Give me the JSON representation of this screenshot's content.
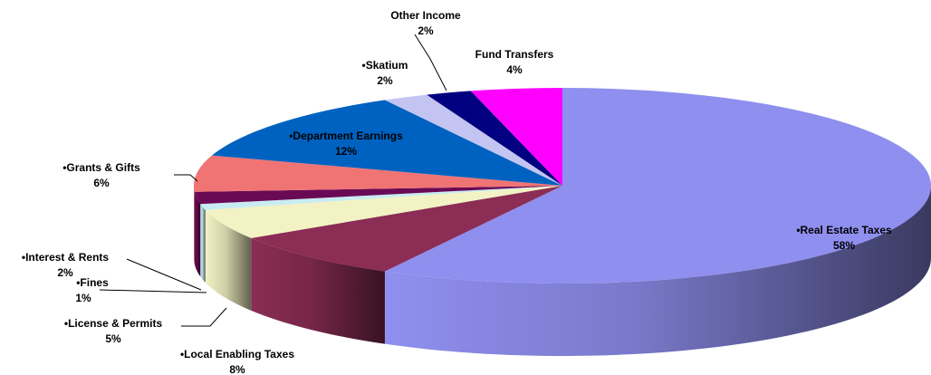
{
  "chart_data": {
    "type": "pie3d",
    "categories": [
      "•Real Estate Taxes",
      "•Local Enabling Taxes",
      "•License & Permits",
      "•Fines",
      "•Interest & Rents",
      "•Grants & Gifts",
      "•Department Earnings",
      "•Skatium",
      "Other Income",
      "Fund Transfers"
    ],
    "values": [
      58,
      8,
      5,
      1,
      2,
      6,
      12,
      2,
      2,
      4
    ],
    "value_labels": [
      "58%",
      "8%",
      "5%",
      "1%",
      "2%",
      "6%",
      "12%",
      "2%",
      "2%",
      "4%"
    ],
    "colors": [
      "#8f8fef",
      "#8b2d55",
      "#f2f2c4",
      "#c8ecf2",
      "#6a0a55",
      "#f07474",
      "#0062c0",
      "#c4c4f2",
      "#000080",
      "#ff00ff"
    ]
  }
}
